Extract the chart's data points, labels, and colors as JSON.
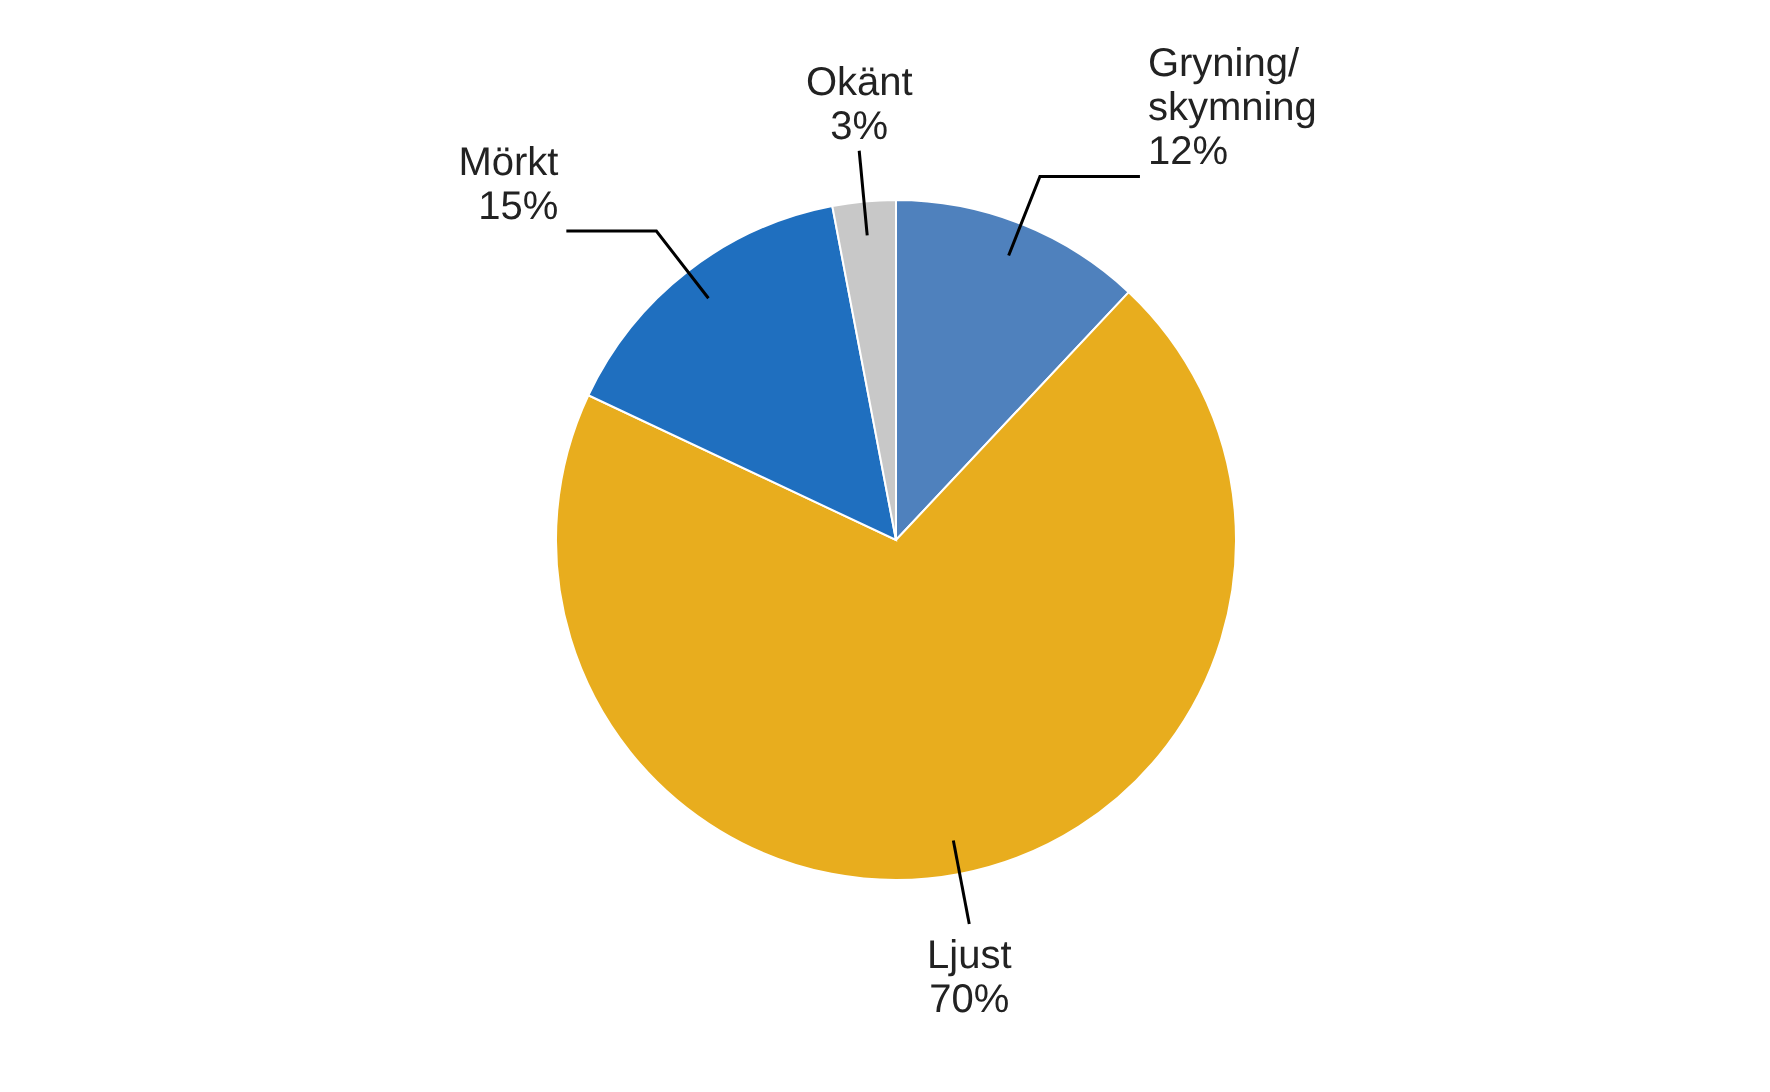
{
  "chart_data": {
    "type": "pie",
    "categories": [
      "Gryning/skymning",
      "Ljust",
      "Mörkt",
      "Okänt"
    ],
    "values": [
      12,
      70,
      15,
      3
    ],
    "colors": [
      "#4f81bd",
      "#e8ad1e",
      "#1f6fbf",
      "#c8c8c8"
    ],
    "value_labels": [
      "12%",
      "70%",
      "15%",
      "3%"
    ]
  }
}
